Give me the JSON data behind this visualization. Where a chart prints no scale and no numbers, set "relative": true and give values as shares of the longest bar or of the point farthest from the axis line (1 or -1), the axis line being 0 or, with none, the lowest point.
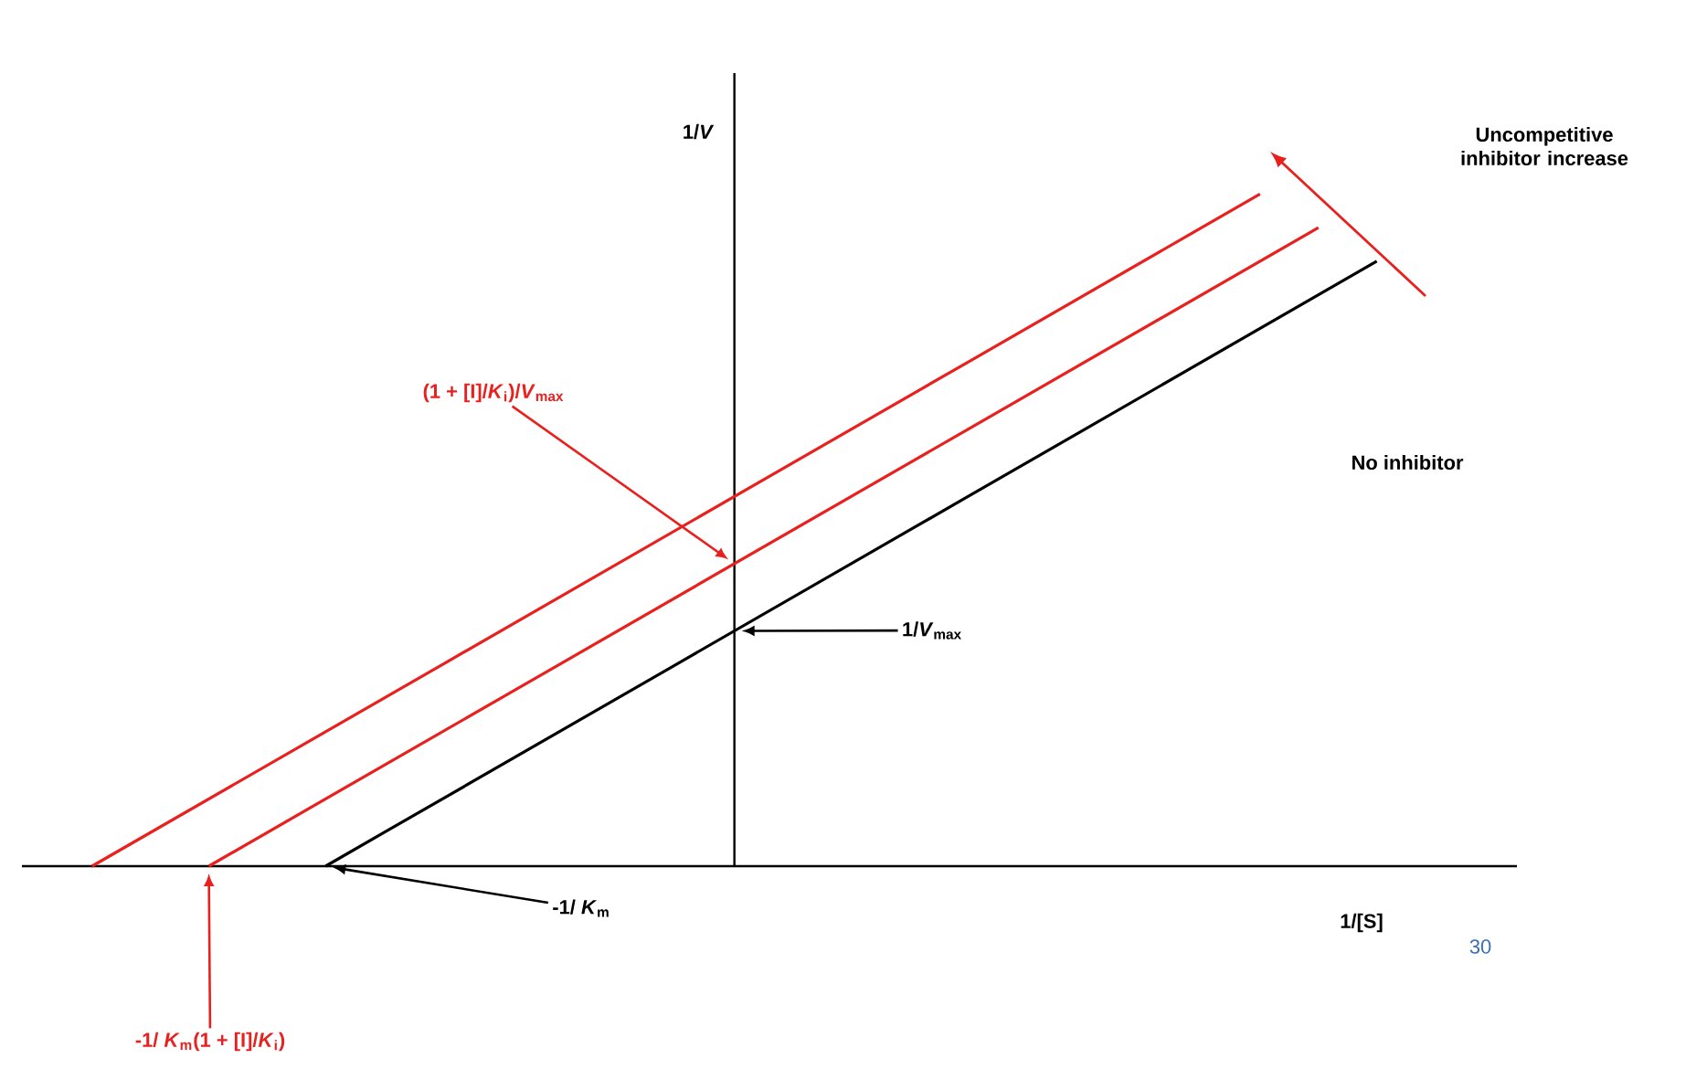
{
  "chart_data": {
    "type": "line",
    "relative": true,
    "xlabel": "1/[S]",
    "ylabel": "1/*V*",
    "categories": [
      null,
      null,
      null,
      null,
      null,
      null,
      null,
      null,
      null,
      null,
      null,
      null,
      null,
      null,
      null,
      null,
      null,
      null,
      null,
      null,
      null,
      null,
      null
    ],
    "series": [
      {
        "name": "No inhibitor",
        "color": "#000000",
        "values": [
          null,
          null,
          null,
          null,
          0,
          0.05,
          0.1,
          0.15,
          0.2,
          0.25,
          0.3,
          0.35,
          0.4,
          0.45,
          0.5,
          0.55,
          0.6,
          0.65,
          0.7,
          0.75,
          0.8,
          0.85,
          0.9
        ]
      },
      {
        "color": "#e8201e",
        "values": [
          null,
          null,
          0,
          0.05,
          0.1,
          0.15,
          0.2,
          0.25,
          0.3,
          0.35,
          0.4,
          0.45,
          0.5,
          0.55,
          0.6,
          0.65,
          0.7,
          0.75,
          0.8,
          0.85,
          0.9,
          0.95,
          null
        ]
      },
      {
        "color": "#e8201e",
        "values": [
          0,
          0.05,
          0.1,
          0.15,
          0.2,
          0.25,
          0.3,
          0.35,
          0.4,
          0.45,
          0.5,
          0.55,
          0.6,
          0.65,
          0.7,
          0.75,
          0.8,
          0.85,
          0.9,
          0.95,
          1,
          null,
          null
        ]
      }
    ],
    "annotations": [
      "(1 + [I]/*K*$_{i}$)/*V*$_{max}$",
      "1/*V*$_{max}$",
      "-1/ *K*$_{m}$",
      "-1/ *K*$_{m}$(1 + [I]/*K*$_{i}$)",
      "Uncompetitive inhibitor increase",
      "30"
    ]
  }
}
